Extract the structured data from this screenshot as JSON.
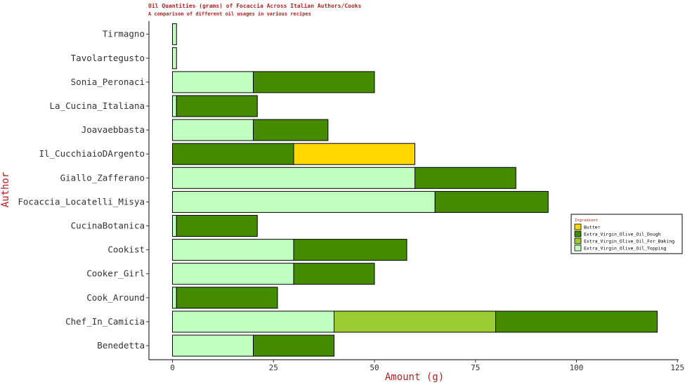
{
  "chart_data": {
    "type": "bar",
    "orientation": "horizontal",
    "stacked": true,
    "title": "Oil Quantities (grams) of Focaccia Across Italian Authors/Cooks",
    "subtitle": "A comparison of different oil usages in various recipes",
    "xlabel": "Amount (g)",
    "ylabel": "Author",
    "xlim": [
      0,
      125
    ],
    "xticks": [
      0,
      25,
      50,
      75,
      100,
      125
    ],
    "grid": false,
    "legend": {
      "title": "Ingredient",
      "position": "right"
    },
    "categories": [
      "Benedetta",
      "Chef_In_Camicia",
      "Cook_Around",
      "Cooker_Girl",
      "Cookist",
      "CucinaBotanica",
      "Focaccia_Locatelli_Misya",
      "Giallo_Zafferano",
      "Il_CucchiaioDArgento",
      "Joavaebbasta",
      "La_Cucina_Italiana",
      "Sonia_Peronaci",
      "Tavolartegusto",
      "Tirmagno"
    ],
    "series": [
      {
        "name": "Extra_Virgin_Olive_Oil_Topping",
        "color": "#c1ffc1",
        "values": [
          20,
          40,
          1,
          30,
          30,
          1,
          65,
          60,
          0,
          20,
          1,
          20,
          1,
          1
        ]
      },
      {
        "name": "Extra_Virgin_Olive_Oil_For_Baking",
        "color": "#9acd32",
        "values": [
          0,
          40,
          0,
          0,
          0,
          0,
          0,
          0,
          0,
          0,
          0,
          0,
          0,
          0
        ]
      },
      {
        "name": "Extra_Virgin_Olive_Oil_Dough",
        "color": "#458b00",
        "values": [
          20,
          40,
          25,
          20,
          28,
          20,
          28,
          25,
          30,
          18.5,
          20,
          30,
          0,
          0
        ]
      },
      {
        "name": "Butter",
        "color": "#ffd700",
        "values": [
          0,
          0,
          0,
          0,
          0,
          0,
          0,
          0,
          30,
          0,
          0,
          0,
          0,
          0
        ]
      }
    ],
    "legend_order": [
      "Butter",
      "Extra_Virgin_Olive_Oil_Dough",
      "Extra_Virgin_Olive_Oil_For_Baking",
      "Extra_Virgin_Olive_Oil_Topping"
    ]
  }
}
